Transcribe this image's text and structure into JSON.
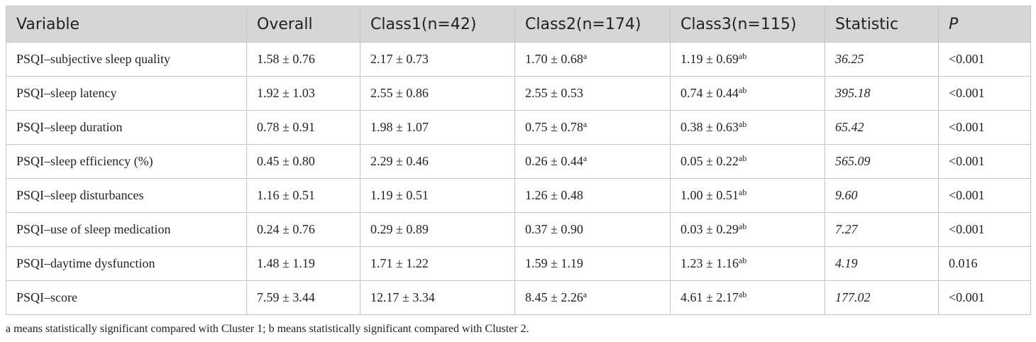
{
  "table": {
    "header": [
      "Variable",
      "Overall",
      "Class1(n=42)",
      "Class2(n=174)",
      "Class3(n=115)",
      "Statistic",
      "P"
    ],
    "rows": [
      [
        "PSQI–subjective sleep quality",
        "1.58 ± 0.76",
        "2.17 ± 0.73",
        {
          "text": "1.70 ± 0.68",
          "sup": "a"
        },
        {
          "text": "1.19 ± 0.69",
          "sup": "ab"
        },
        "36.25",
        "<0.001"
      ],
      [
        "PSQI–sleep latency",
        "1.92 ± 1.03",
        "2.55 ± 0.86",
        "2.55 ± 0.53",
        {
          "text": "0.74 ± 0.44",
          "sup": "ab"
        },
        "395.18",
        "<0.001"
      ],
      [
        "PSQI–sleep duration",
        "0.78 ± 0.91",
        "1.98 ± 1.07",
        {
          "text": "0.75 ± 0.78",
          "sup": "a"
        },
        {
          "text": "0.38 ± 0.63",
          "sup": "ab"
        },
        "65.42",
        "<0.001"
      ],
      [
        "PSQI–sleep efficiency (%)",
        "0.45 ± 0.80",
        "2.29 ± 0.46",
        {
          "text": "0.26 ± 0.44",
          "sup": "a"
        },
        {
          "text": "0.05 ± 0.22",
          "sup": "ab"
        },
        "565.09",
        "<0.001"
      ],
      [
        "PSQI–sleep disturbances",
        "1.16 ± 0.51",
        "1.19 ± 0.51",
        "1.26 ± 0.48",
        {
          "text": "1.00 ± 0.51",
          "sup": "ab"
        },
        "9.60",
        "<0.001"
      ],
      [
        "PSQI–use of sleep medication",
        "0.24 ± 0.76",
        "0.29 ± 0.89",
        "0.37 ± 0.90",
        {
          "text": "0.03 ± 0.29",
          "sup": "ab"
        },
        "7.27",
        "<0.001"
      ],
      [
        "PSQI–daytime dysfunction",
        "1.48 ± 1.19",
        "1.71 ± 1.22",
        "1.59 ± 1.19",
        {
          "text": "1.23 ± 1.16",
          "sup": "ab"
        },
        "4.19",
        "0.016"
      ],
      [
        "PSQI–score",
        "7.59 ± 3.44",
        "12.17 ± 3.34",
        {
          "text": "8.45 ± 2.26",
          "sup": "a"
        },
        {
          "text": "4.61 ± 2.17",
          "sup": "ab"
        },
        "177.02",
        "<0.001"
      ]
    ],
    "footnote": "a means statistically significant compared with Cluster 1; b means statistically significant compared with Cluster 2."
  }
}
